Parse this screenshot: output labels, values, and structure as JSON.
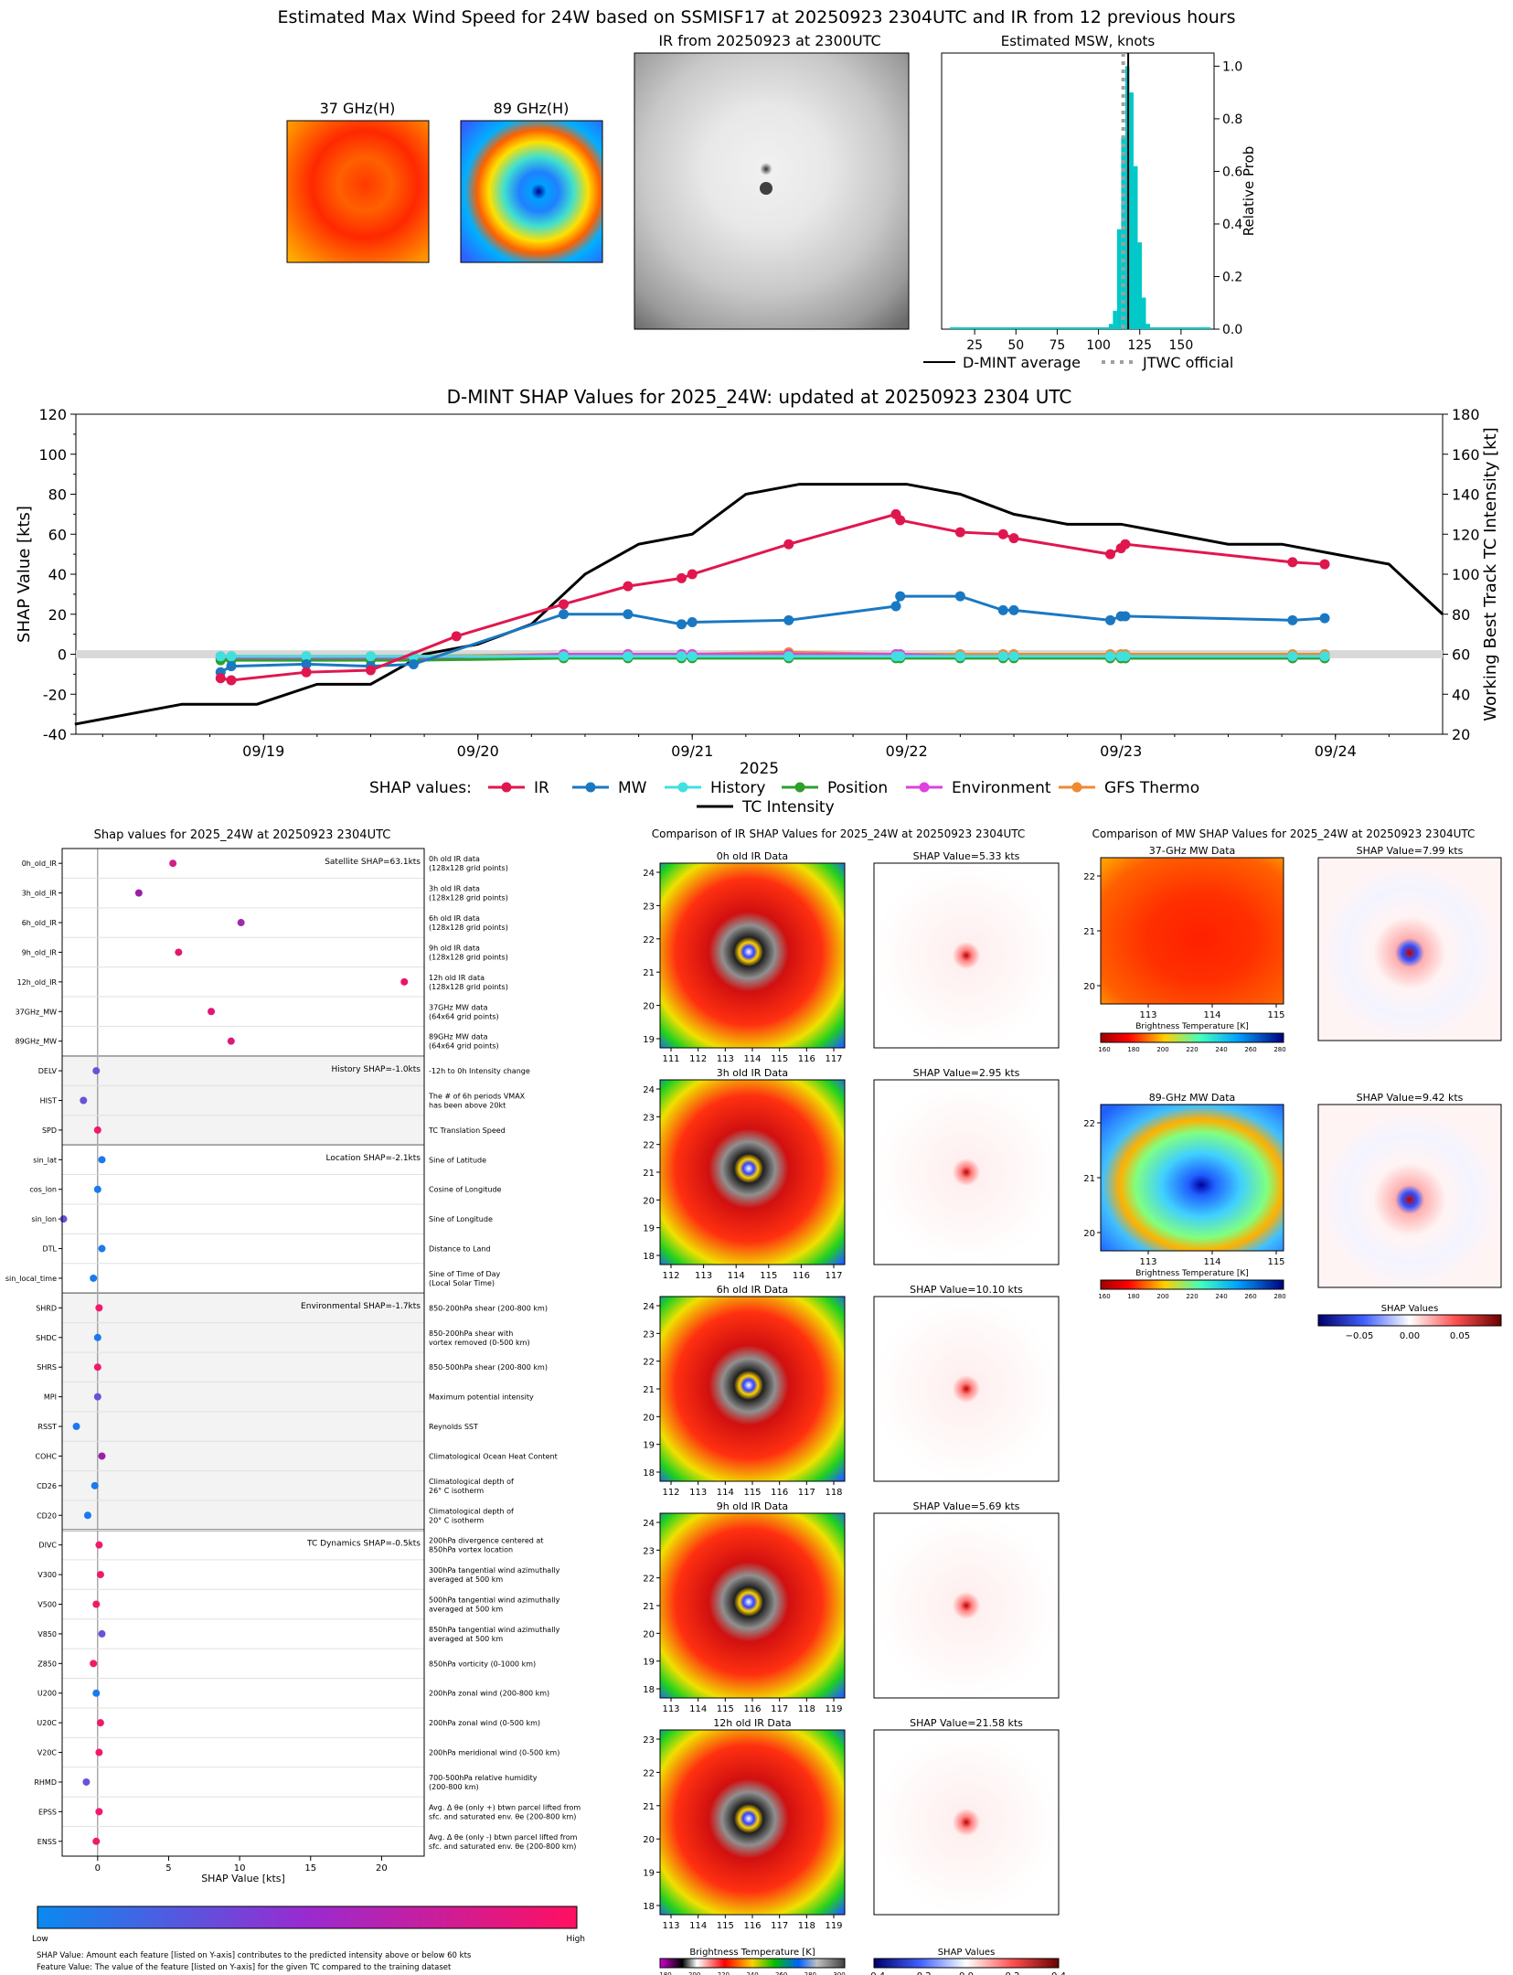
{
  "page": {
    "main_title": "Estimated Max Wind Speed for 24W based on SSMISF17 at 20250923 2304UTC and IR from 12 previous hours"
  },
  "top_panels": {
    "ghz37_title": "37 GHz(H)",
    "ghz89_title": "89 GHz(H)",
    "ir_title": "IR from 20250923 at 2300UTC",
    "msw": {
      "title": "Estimated MSW, knots",
      "ylabel": "Relative Prob",
      "xticks": [
        "25",
        "50",
        "75",
        "100",
        "125",
        "150"
      ],
      "yticks": [
        "0.0",
        "0.2",
        "0.4",
        "0.6",
        "0.8",
        "1.0"
      ],
      "legend_avg": "D-MINT average",
      "legend_jtwc": "JTWC official"
    }
  },
  "chart_data": [
    {
      "type": "bar",
      "title": "Estimated MSW, knots",
      "xlabel": "",
      "ylabel": "Relative Prob",
      "xlim": [
        5,
        170
      ],
      "ylim": [
        0,
        1.05
      ],
      "bin_width": 2.5,
      "x": [
        107.5,
        110,
        112.5,
        115,
        117.5,
        120,
        122.5,
        125,
        127.5,
        130
      ],
      "values": [
        0.02,
        0.07,
        0.38,
        0.73,
        1.0,
        0.9,
        0.62,
        0.33,
        0.12,
        0.02
      ],
      "lines": [
        {
          "name": "D-MINT average",
          "x": 118,
          "style": "solid"
        },
        {
          "name": "JTWC official",
          "x": 115,
          "style": "dotted"
        }
      ]
    },
    {
      "type": "line",
      "title": "D-MINT SHAP Values for 2025_24W: updated at 20250923 2304 UTC",
      "xlabel": "2025",
      "ylabel": "SHAP Value [kts]",
      "y2label": "Working Best Track TC Intensity [kt]",
      "ylim": [
        -40,
        120
      ],
      "y2lim": [
        20,
        180
      ],
      "xlim": [
        "09/18 03UTC",
        "09/24 12UTC"
      ],
      "x_ticks": [
        "09/19",
        "09/20",
        "09/21",
        "09/22",
        "09/23",
        "09/24"
      ],
      "y_ticks": [
        "-40",
        "-20",
        "0",
        "20",
        "40",
        "60",
        "80",
        "100",
        "120"
      ],
      "y2_ticks": [
        "20",
        "40",
        "60",
        "80",
        "100",
        "120",
        "140",
        "160",
        "180"
      ],
      "legend_title": "SHAP values:",
      "series": [
        {
          "name": "IR",
          "color": "#e0174f",
          "x": [
            18.8,
            18.85,
            19.2,
            19.5,
            19.9,
            20.4,
            20.7,
            20.95,
            21.0,
            21.45,
            21.95,
            21.97,
            22.25,
            22.45,
            22.5,
            22.95,
            23.0,
            23.02,
            23.8,
            23.95
          ],
          "y": [
            -12,
            -13,
            -9,
            -8,
            9,
            25,
            34,
            38,
            40,
            55,
            70,
            67,
            61,
            60,
            58,
            50,
            53,
            55,
            46,
            45
          ]
        },
        {
          "name": "MW",
          "color": "#1a78c2",
          "x": [
            18.8,
            18.85,
            19.2,
            19.5,
            19.7,
            20.4,
            20.7,
            20.95,
            21.0,
            21.45,
            21.95,
            21.97,
            22.25,
            22.45,
            22.5,
            22.95,
            23.0,
            23.02,
            23.8,
            23.95
          ],
          "y": [
            -9,
            -6,
            -5,
            -6,
            -5,
            20,
            20,
            15,
            16,
            17,
            24,
            29,
            29,
            22,
            22,
            17,
            19,
            19,
            17,
            18
          ]
        },
        {
          "name": "History",
          "color": "#40e0e0",
          "x": [
            18.8,
            18.85,
            19.2,
            19.5,
            19.7,
            20.4,
            20.7,
            20.95,
            21.0,
            21.45,
            21.95,
            21.97,
            22.25,
            22.45,
            22.5,
            22.95,
            23.0,
            23.02,
            23.8,
            23.95
          ],
          "y": [
            -1,
            -1,
            -1,
            -1,
            -1,
            -1,
            -1,
            -1,
            -1,
            -1,
            -1,
            -1,
            -1,
            -1,
            -1,
            -1,
            -1,
            -1,
            -1,
            -1
          ]
        },
        {
          "name": "Position",
          "color": "#2ca02c",
          "x": [
            18.8,
            18.85,
            19.2,
            19.5,
            19.7,
            20.4,
            20.7,
            20.95,
            21.0,
            21.45,
            21.95,
            21.97,
            22.25,
            22.45,
            22.5,
            22.95,
            23.0,
            23.02,
            23.8,
            23.95
          ],
          "y": [
            -3,
            -3,
            -3,
            -3,
            -3,
            -2,
            -2,
            -2,
            -2,
            -2,
            -2,
            -2,
            -2,
            -2,
            -2,
            -2,
            -2,
            -2,
            -2,
            -2
          ]
        },
        {
          "name": "Environment",
          "color": "#e040e0",
          "x": [
            18.8,
            18.85,
            19.2,
            19.5,
            19.7,
            20.4,
            20.7,
            20.95,
            21.0,
            21.45,
            21.95,
            21.97,
            22.25,
            22.45,
            22.5,
            22.95,
            23.0,
            23.02,
            23.8,
            23.95
          ],
          "y": [
            -2,
            -2,
            -2,
            -2,
            -2,
            0,
            0,
            0,
            0,
            0,
            0,
            0,
            -1,
            -1,
            -1,
            -2,
            -2,
            -2,
            -2,
            -2
          ]
        },
        {
          "name": "GFS Thermo",
          "color": "#f08a30",
          "x": [
            18.8,
            18.85,
            19.2,
            19.5,
            19.7,
            20.4,
            20.7,
            20.95,
            21.0,
            21.45,
            21.95,
            21.97,
            22.25,
            22.45,
            22.5,
            22.95,
            23.0,
            23.02,
            23.8,
            23.95
          ],
          "y": [
            -1,
            -1,
            -1,
            -1,
            -1,
            0,
            0,
            0,
            0,
            1,
            0,
            0,
            0,
            0,
            0,
            0,
            0,
            0,
            0,
            0
          ]
        },
        {
          "name": "TC Intensity",
          "color": "#000000",
          "axis": "right",
          "x": [
            18.12,
            18.62,
            18.97,
            19.25,
            19.5,
            19.75,
            20.0,
            20.25,
            20.5,
            20.75,
            21.0,
            21.25,
            21.5,
            21.75,
            22.0,
            22.25,
            22.5,
            22.75,
            23.0,
            23.25,
            23.5,
            23.75,
            24.0,
            24.25,
            24.5
          ],
          "y": [
            25,
            35,
            35,
            45,
            45,
            60,
            65,
            75,
            100,
            115,
            120,
            140,
            145,
            145,
            145,
            140,
            130,
            125,
            125,
            120,
            115,
            115,
            110,
            105,
            80
          ]
        }
      ]
    },
    {
      "type": "scatter",
      "title": "Shap values for 2025_24W at 20250923 2304UTC",
      "xlabel": "SHAP Value [kts]",
      "xlim": [
        -2.5,
        23
      ],
      "x_ticks": [
        "0",
        "5",
        "10",
        "15",
        "20"
      ],
      "colorbar_low": "Low",
      "colorbar_high": "High",
      "groups": [
        {
          "label": "Satellite SHAP=63.1kts",
          "features": [
            {
              "name": "0h_old_IR",
              "value": 5.3,
              "desc": "0h old IR data\n(128x128 grid points)",
              "color": "#d1208c"
            },
            {
              "name": "3h_old_IR",
              "value": 2.9,
              "desc": "3h old IR data\n(128x128 grid points)",
              "color": "#9c1ea8"
            },
            {
              "name": "6h_old_IR",
              "value": 10.1,
              "desc": "6h old IR data\n(128x128 grid points)",
              "color": "#a12aa8"
            },
            {
              "name": "9h_old_IR",
              "value": 5.7,
              "desc": "9h old IR data\n(128x128 grid points)",
              "color": "#e01a6a"
            },
            {
              "name": "12h_old_IR",
              "value": 21.6,
              "desc": "12h old IR data\n(128x128 grid points)",
              "color": "#f0106a"
            },
            {
              "name": "37GHz_MW",
              "value": 8.0,
              "desc": "37GHz MW data\n(64x64 grid points)",
              "color": "#e0157a"
            },
            {
              "name": "89GHz_MW",
              "value": 9.4,
              "desc": "89GHz MW data\n(64x64 grid points)",
              "color": "#d91a7a"
            }
          ]
        },
        {
          "label": "History SHAP=-1.0kts",
          "features": [
            {
              "name": "DELV",
              "value": -0.1,
              "desc": "-12h to 0h Intensity change",
              "color": "#6a52d8"
            },
            {
              "name": "HIST",
              "value": -1.0,
              "desc": "The # of 6h periods VMAX\nhas been above 20kt",
              "color": "#6a52d8"
            },
            {
              "name": "SPD",
              "value": 0.0,
              "desc": "TC Translation Speed",
              "color": "#f01a6a"
            }
          ]
        },
        {
          "label": "Location SHAP=-2.1kts",
          "features": [
            {
              "name": "sin_lat",
              "value": 0.3,
              "desc": "Sine of Latitude",
              "color": "#1a7af0"
            },
            {
              "name": "cos_lon",
              "value": 0.0,
              "desc": "Cosine of Longitude",
              "color": "#1a7af0"
            },
            {
              "name": "sin_lon",
              "value": -2.4,
              "desc": "Sine of Longitude",
              "color": "#6a52d8"
            },
            {
              "name": "DTL",
              "value": 0.3,
              "desc": "Distance to Land",
              "color": "#1a7af0"
            },
            {
              "name": "sin_local_time",
              "value": -0.3,
              "desc": "Sine of Time of Day\n(Local Solar Time)",
              "color": "#1a7af0"
            }
          ]
        },
        {
          "label": "Environmental SHAP=-1.7kts",
          "features": [
            {
              "name": "SHRD",
              "value": 0.1,
              "desc": "850-200hPa shear (200-800 km)",
              "color": "#f01a6a"
            },
            {
              "name": "SHDC",
              "value": 0.0,
              "desc": "850-200hPa shear with\nvortex removed (0-500 km)",
              "color": "#1a7af0"
            },
            {
              "name": "SHRS",
              "value": 0.0,
              "desc": "850-500hPa shear (200-800 km)",
              "color": "#f01a6a"
            },
            {
              "name": "MPI",
              "value": 0.0,
              "desc": "Maximum potential intensity",
              "color": "#6a52d8"
            },
            {
              "name": "RSST",
              "value": -1.5,
              "desc": "Reynolds SST",
              "color": "#1a7af0"
            },
            {
              "name": "COHC",
              "value": 0.3,
              "desc": "Climatological Ocean Heat Content",
              "color": "#9c1ea8"
            },
            {
              "name": "CD26",
              "value": -0.2,
              "desc": "Climatological depth of\n26° C isotherm",
              "color": "#1a7af0"
            },
            {
              "name": "CD20",
              "value": -0.7,
              "desc": "Climatological depth of\n20° C isotherm",
              "color": "#1a7af0"
            }
          ]
        },
        {
          "label": "TC Dynamics SHAP=-0.5kts",
          "features": [
            {
              "name": "DIVC",
              "value": 0.1,
              "desc": "200hPa divergence centered at\n850hPa vortex location",
              "color": "#f01a6a"
            },
            {
              "name": "V300",
              "value": 0.2,
              "desc": "300hPa tangential wind azimuthally\naveraged at 500 km",
              "color": "#f01a6a"
            },
            {
              "name": "V500",
              "value": -0.1,
              "desc": "500hPa tangential wind azimuthally\naveraged at 500 km",
              "color": "#f01a6a"
            },
            {
              "name": "V850",
              "value": 0.3,
              "desc": "850hPa tangential wind azimuthally\naveraged at 500 km",
              "color": "#6a52d8"
            },
            {
              "name": "Z850",
              "value": -0.3,
              "desc": "850hPa vorticity (0-1000 km)",
              "color": "#f01a6a"
            },
            {
              "name": "U200",
              "value": -0.1,
              "desc": "200hPa zonal wind (200-800 km)",
              "color": "#1a7af0"
            },
            {
              "name": "U20C",
              "value": 0.2,
              "desc": "200hPa zonal wind (0-500 km)",
              "color": "#f01a6a"
            },
            {
              "name": "V20C",
              "value": 0.1,
              "desc": "200hPa meridional wind (0-500 km)",
              "color": "#f01a6a"
            },
            {
              "name": "RHMD",
              "value": -0.8,
              "desc": "700-500hPa relative humidity\n(200-800 km)",
              "color": "#6a52d8"
            },
            {
              "name": "EPSS",
              "value": 0.1,
              "desc": "Avg. Δ θe (only +) btwn parcel lifted from\nsfc. and saturated env. θe (200-800 km)",
              "color": "#f01a6a"
            },
            {
              "name": "ENSS",
              "value": -0.1,
              "desc": "Avg. Δ θe (only -) btwn parcel lifted from\nsfc. and saturated env. θe (200-800 km)",
              "color": "#f01a6a"
            }
          ]
        }
      ]
    }
  ],
  "ir_compare": {
    "title": "Comparison of IR SHAP Values for 2025_24W at 20250923 2304UTC",
    "rows": [
      {
        "label": "0h old IR Data",
        "shap": "SHAP Value=5.33 kts",
        "xticks": [
          "111",
          "112",
          "113",
          "114",
          "115",
          "116",
          "117"
        ],
        "yticks": [
          "24",
          "23",
          "22",
          "21",
          "20",
          "19"
        ]
      },
      {
        "label": "3h old IR Data",
        "shap": "SHAP Value=2.95 kts",
        "xticks": [
          "112",
          "113",
          "114",
          "115",
          "116",
          "117"
        ],
        "yticks": [
          "24",
          "23",
          "22",
          "21",
          "20",
          "19",
          "18"
        ]
      },
      {
        "label": "6h old IR Data",
        "shap": "SHAP Value=10.10 kts",
        "xticks": [
          "112",
          "113",
          "114",
          "115",
          "116",
          "117",
          "118"
        ],
        "yticks": [
          "24",
          "23",
          "22",
          "21",
          "20",
          "19",
          "18"
        ]
      },
      {
        "label": "9h old IR Data",
        "shap": "SHAP Value=5.69 kts",
        "xticks": [
          "113",
          "114",
          "115",
          "116",
          "117",
          "118",
          "119"
        ],
        "yticks": [
          "24",
          "23",
          "22",
          "21",
          "20",
          "19",
          "18"
        ]
      },
      {
        "label": "12h old IR Data",
        "shap": "SHAP Value=21.58 kts",
        "xticks": [
          "113",
          "114",
          "115",
          "116",
          "117",
          "118",
          "119"
        ],
        "yticks": [
          "23",
          "22",
          "21",
          "20",
          "19",
          "18"
        ]
      }
    ],
    "cb_title": "Brightness Temperature [K]",
    "cb_ticks": [
      "180",
      "200",
      "220",
      "240",
      "260",
      "280",
      "300"
    ],
    "shap_cb_title": "SHAP Values",
    "shap_cb_ticks": [
      "−0.4",
      "−0.2",
      "0.0",
      "0.2",
      "0.4"
    ]
  },
  "mw_compare": {
    "title": "Comparison of MW SHAP Values for 2025_24W at 20250923 2304UTC",
    "rows": [
      {
        "label": "37-GHz MW Data",
        "shap": "SHAP Value=7.99 kts"
      },
      {
        "label": "89-GHz MW Data",
        "shap": "SHAP Value=9.42 kts"
      }
    ],
    "xticks": [
      "113",
      "114",
      "115"
    ],
    "yticks": [
      "22",
      "21",
      "20"
    ],
    "cb_title": "Brightness Temperature [K]",
    "cb_ticks": [
      "160",
      "180",
      "200",
      "220",
      "240",
      "260",
      "280"
    ],
    "shap_cb_title": "SHAP Values",
    "shap_cb_ticks": [
      "−0.05",
      "0.00",
      "0.05"
    ]
  },
  "footer": {
    "line1": "SHAP Value: Amount each feature [listed on Y-axis] contributes to the predicted intensity above or below 60 kts",
    "line2": "Feature Value: The value of the feature [listed on Y-axis] for the given TC compared to the training dataset"
  }
}
